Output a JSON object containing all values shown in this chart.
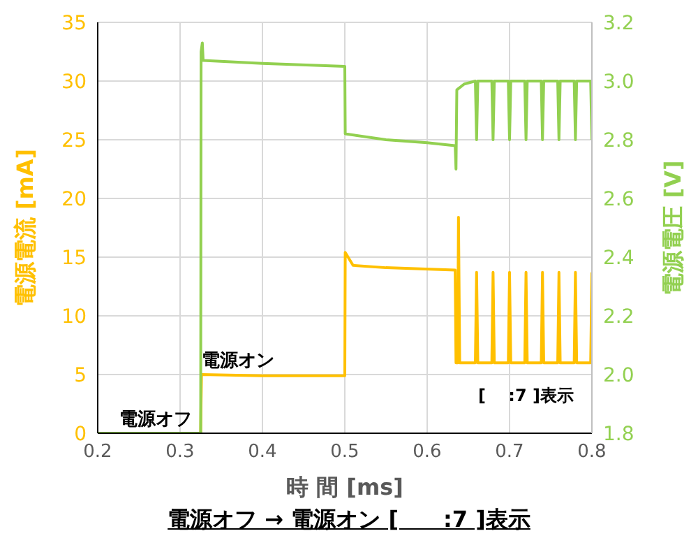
{
  "chart_data": {
    "type": "line",
    "title": "電源オフ → 電源オン [　　:7 ]表示",
    "xlabel": "時 間 [ms]",
    "ylabel": "電源電流 [mA]",
    "y2label": "電源電圧 [V]",
    "annotations": [
      {
        "text": "電源オフ",
        "x": 0.27,
        "y": 0
      },
      {
        "text": "電源オン",
        "x": 0.37,
        "y": 5
      },
      "[　 :7 ]表示"
    ],
    "series": [
      {
        "color": "#ffc000",
        "axis": "y",
        "x": [
          0.2,
          0.325,
          0.3255,
          0.326,
          0.4,
          0.5,
          0.5005,
          0.51,
          0.55,
          0.634,
          0.635,
          0.637,
          0.638,
          0.6395,
          0.6585,
          0.66,
          0.6615,
          0.6785,
          0.68,
          0.6815,
          0.6985,
          0.7,
          0.7015,
          0.7185,
          0.72,
          0.7215,
          0.7385,
          0.74,
          0.7415,
          0.7585,
          0.76,
          0.7615,
          0.7785,
          0.78,
          0.7815,
          0.7985,
          0.8
        ],
        "values": [
          0,
          0,
          2.8,
          5,
          4.9,
          4.9,
          15.4,
          14.3,
          14.1,
          13.9,
          6,
          6,
          18.4,
          6,
          6,
          13.7,
          6,
          6,
          13.7,
          6,
          6,
          13.7,
          6,
          6,
          13.7,
          6,
          6,
          13.7,
          6,
          6,
          13.7,
          6,
          6,
          13.7,
          6,
          6,
          13.7
        ]
      },
      {
        "color": "#92d050",
        "axis": "y2",
        "x": [
          0.2,
          0.325,
          0.3255,
          0.327,
          0.328,
          0.4,
          0.5,
          0.5005,
          0.55,
          0.6,
          0.634,
          0.635,
          0.636,
          0.645,
          0.6585,
          0.66,
          0.6615,
          0.6785,
          0.68,
          0.6815,
          0.6985,
          0.7,
          0.7015,
          0.7185,
          0.72,
          0.7215,
          0.7385,
          0.74,
          0.7415,
          0.7585,
          0.76,
          0.7615,
          0.7785,
          0.78,
          0.7815,
          0.7985,
          0.8
        ],
        "values": [
          1.8,
          1.8,
          3.1,
          3.13,
          3.07,
          3.06,
          3.05,
          2.82,
          2.8,
          2.79,
          2.78,
          2.7,
          2.97,
          2.99,
          3.0,
          2.8,
          3.0,
          3.0,
          2.8,
          3.0,
          3.0,
          2.8,
          3.0,
          3.0,
          2.8,
          3.0,
          3.0,
          2.8,
          3.0,
          3.0,
          2.8,
          3.0,
          3.0,
          2.8,
          3.0,
          3.0,
          2.8
        ]
      }
    ],
    "xlim": [
      0.2,
      0.8
    ],
    "xticks": [
      0.2,
      0.3,
      0.4,
      0.5,
      0.6,
      0.7,
      0.8
    ],
    "ylim": [
      0,
      35
    ],
    "yticks": [
      0,
      5,
      10,
      15,
      20,
      25,
      30,
      35
    ],
    "y2lim": [
      1.8,
      3.2
    ],
    "y2ticks": [
      1.8,
      {
        "value": 2,
        "label": "2.0"
      },
      2.2,
      2.4,
      2.6,
      2.8,
      {
        "value": 3,
        "label": "3.0"
      },
      3.2
    ],
    "grid": true,
    "legend": false,
    "marker": "none",
    "line_style": "solid"
  }
}
